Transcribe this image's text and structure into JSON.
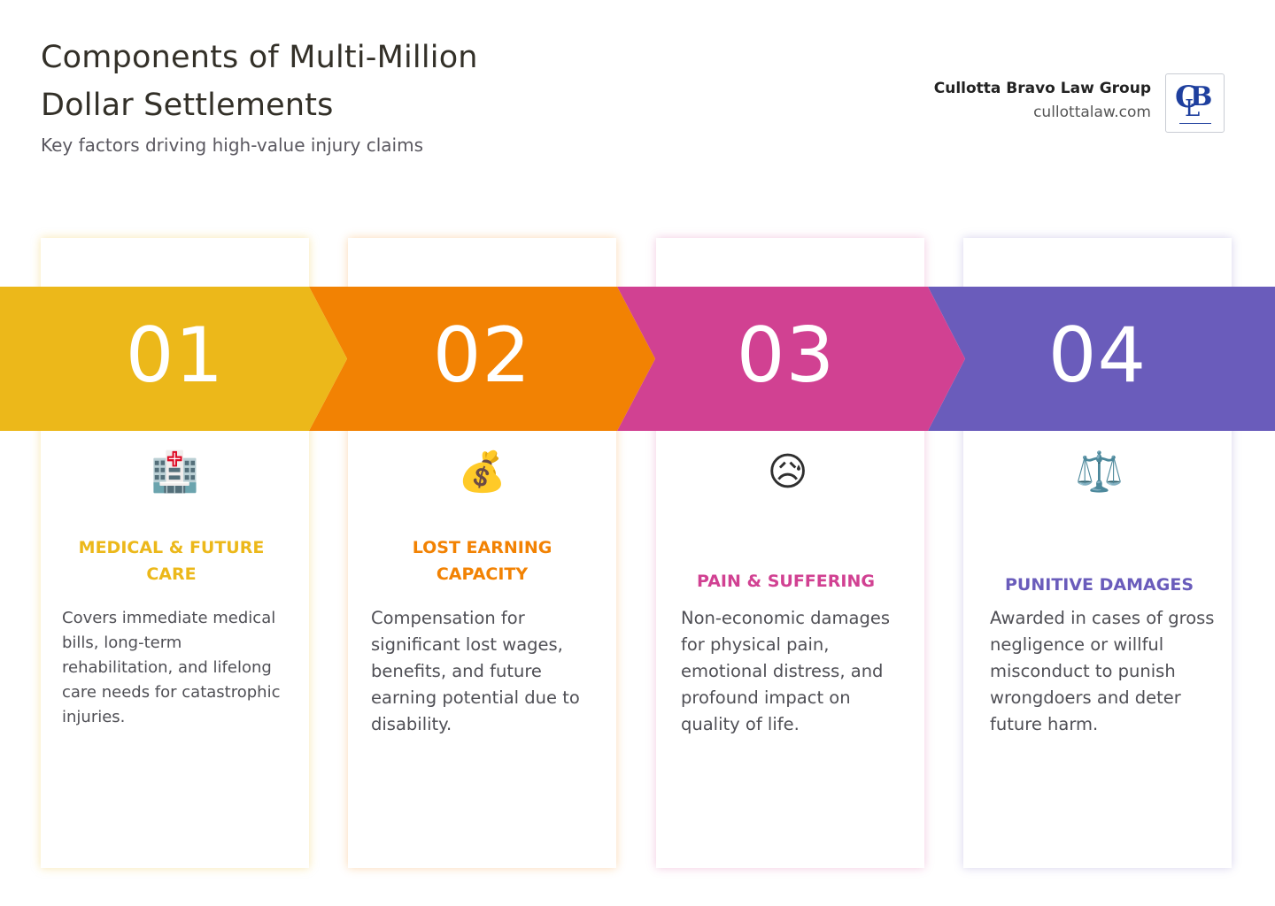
{
  "header": {
    "title": "Components of Multi-Million Dollar Settlements",
    "subtitle": "Key factors driving high-value injury claims"
  },
  "brand": {
    "name": "Cullotta Bravo Law Group",
    "url": "cullottalaw.com",
    "logo_letters": [
      "C",
      "B",
      "L"
    ]
  },
  "colors": {
    "step1": "#ECB81A",
    "step2": "#F28203",
    "step3": "#D14192",
    "step4": "#6A5CBB"
  },
  "steps": [
    {
      "number": "01",
      "icon": "hospital-icon",
      "glyph": "🏥",
      "title": "MEDICAL & FUTURE CARE",
      "description": "Covers immediate medical bills, long-term rehabilitation, and lifelong care needs for catastrophic injuries."
    },
    {
      "number": "02",
      "icon": "money-bag-icon",
      "glyph": "💰",
      "title": "LOST EARNING CAPACITY",
      "description": "Compensation for significant lost wages, benefits, and future earning potential due to disability."
    },
    {
      "number": "03",
      "icon": "sad-face-icon",
      "glyph": "😥",
      "title": "PAIN & SUFFERING",
      "description": "Non-economic damages for physical pain, emotional distress, and profound impact on quality of life."
    },
    {
      "number": "04",
      "icon": "scales-icon",
      "glyph": "⚖️",
      "title": "PUNITIVE DAMAGES",
      "description": "Awarded in cases of gross negligence or willful misconduct to punish wrongdoers and deter future harm."
    }
  ]
}
